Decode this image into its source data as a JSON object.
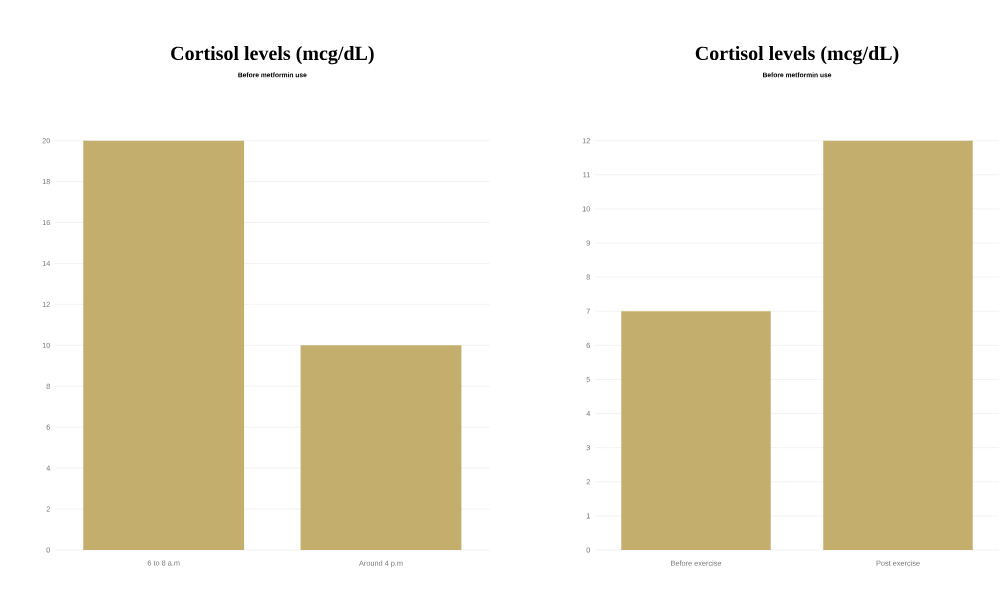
{
  "chart_data": [
    {
      "type": "bar",
      "title": "Cortisol levels  (mcg/dL)",
      "subtitle": "Before metformin use",
      "categories": [
        "6 to 8 a.m",
        "Around 4 p.m"
      ],
      "values": [
        20,
        10
      ],
      "color": "#c4ae6e",
      "ylim": [
        0,
        20
      ],
      "yticks": [
        0,
        2,
        4,
        6,
        8,
        10,
        12,
        14,
        16,
        18,
        20
      ],
      "grid": "y"
    },
    {
      "type": "bar",
      "title": "Cortisol levels  (mcg/dL)",
      "subtitle": "Before metformin use",
      "categories": [
        "Before exercise",
        "Post exercise"
      ],
      "values": [
        7,
        12
      ],
      "color": "#c4ae6e",
      "ylim": [
        0,
        12
      ],
      "yticks": [
        0,
        1,
        2,
        3,
        4,
        5,
        6,
        7,
        8,
        9,
        10,
        11,
        12
      ],
      "grid": "y"
    }
  ]
}
